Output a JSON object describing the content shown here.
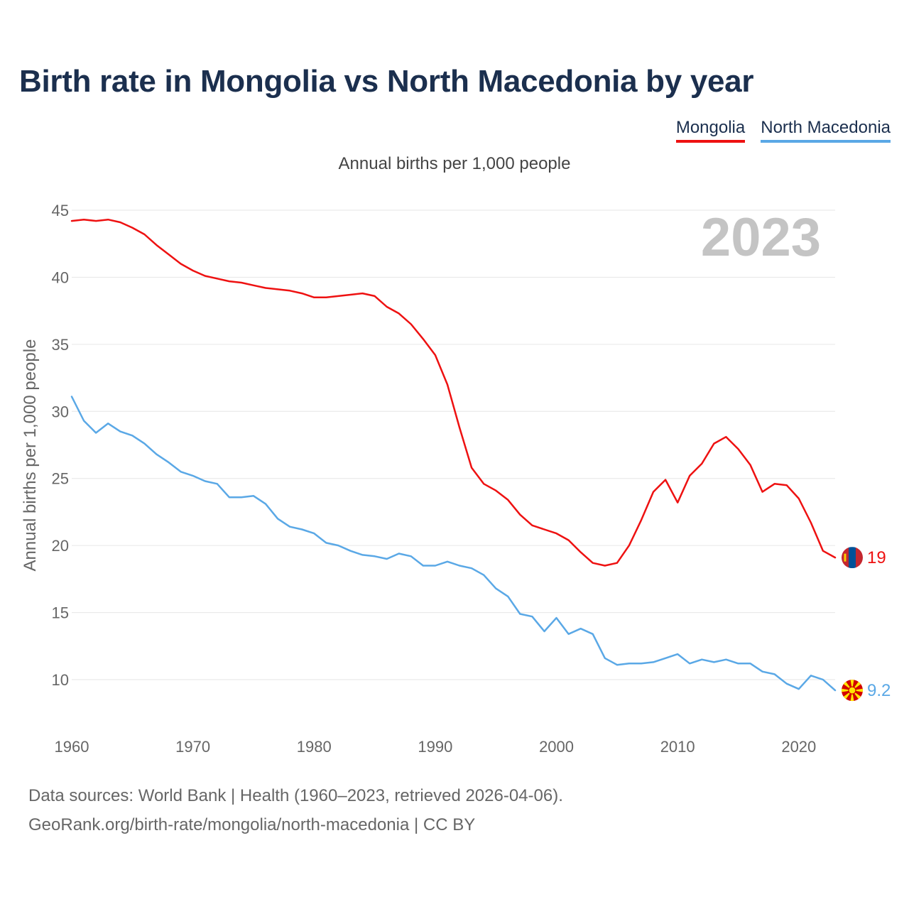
{
  "header": {
    "title": "Birth rate in Mongolia vs North Macedonia by year",
    "subtitle": "Annual births per 1,000 people"
  },
  "legend": {
    "mongolia": "Mongolia",
    "north_macedonia": "North Macedonia"
  },
  "footer": {
    "source_line": "Data sources: World Bank | Health (1960–2023, retrieved 2026-04-06).",
    "credit_line": "GeoRank.org/birth-rate/mongolia/north-macedonia | CC BY"
  },
  "colors": {
    "mongolia": "#ee1111",
    "north_macedonia": "#5aa8e6",
    "title": "#1b2f4e",
    "year_watermark": "#c4c4c4"
  },
  "chart_data": {
    "type": "line",
    "title": "Birth rate in Mongolia vs North Macedonia by year",
    "subtitle": "Annual births per 1,000 people",
    "xlabel": "",
    "ylabel": "Annual births per 1,000 people",
    "xlim": [
      1960,
      2023
    ],
    "ylim": [
      7,
      45
    ],
    "yticks": [
      10,
      15,
      20,
      25,
      30,
      35,
      40,
      45
    ],
    "xticks": [
      1960,
      1970,
      1980,
      1990,
      2000,
      2010,
      2020
    ],
    "year_label": "2023",
    "grid": true,
    "legend_position": "top-right",
    "x": [
      1960,
      1961,
      1962,
      1963,
      1964,
      1965,
      1966,
      1967,
      1968,
      1969,
      1970,
      1971,
      1972,
      1973,
      1974,
      1975,
      1976,
      1977,
      1978,
      1979,
      1980,
      1981,
      1982,
      1983,
      1984,
      1985,
      1986,
      1987,
      1988,
      1989,
      1990,
      1991,
      1992,
      1993,
      1994,
      1995,
      1996,
      1997,
      1998,
      1999,
      2000,
      2001,
      2002,
      2003,
      2004,
      2005,
      2006,
      2007,
      2008,
      2009,
      2010,
      2011,
      2012,
      2013,
      2014,
      2015,
      2016,
      2017,
      2018,
      2019,
      2020,
      2021,
      2022,
      2023
    ],
    "series": [
      {
        "name": "Mongolia",
        "color": "#ee1111",
        "end_label": "19",
        "flag": "mongolia-flag",
        "values": [
          44.2,
          44.3,
          44.2,
          44.3,
          44.1,
          43.7,
          43.2,
          42.4,
          41.7,
          41.0,
          40.5,
          40.1,
          39.9,
          39.7,
          39.6,
          39.4,
          39.2,
          39.1,
          39.0,
          38.8,
          38.5,
          38.5,
          38.6,
          38.7,
          38.8,
          38.6,
          37.8,
          37.3,
          36.5,
          35.4,
          34.2,
          32.0,
          28.8,
          25.8,
          24.6,
          24.1,
          23.4,
          22.3,
          21.5,
          21.2,
          20.9,
          20.4,
          19.5,
          18.7,
          18.5,
          18.7,
          20.0,
          21.9,
          24.0,
          24.9,
          23.2,
          25.2,
          26.1,
          27.6,
          28.1,
          27.2,
          26.0,
          24.0,
          24.6,
          24.5,
          23.5,
          21.7,
          19.6,
          19.1
        ]
      },
      {
        "name": "North Macedonia",
        "color": "#5aa8e6",
        "end_label": "9.2",
        "flag": "north-macedonia-flag",
        "values": [
          31.1,
          29.3,
          28.4,
          29.1,
          28.5,
          28.2,
          27.6,
          26.8,
          26.2,
          25.5,
          25.2,
          24.8,
          24.6,
          23.6,
          23.6,
          23.7,
          23.1,
          22.0,
          21.4,
          21.2,
          20.9,
          20.2,
          20.0,
          19.6,
          19.3,
          19.2,
          19.0,
          19.4,
          19.2,
          18.5,
          18.5,
          18.8,
          18.5,
          18.3,
          17.8,
          16.8,
          16.2,
          14.9,
          14.7,
          13.6,
          14.6,
          13.4,
          13.8,
          13.4,
          11.6,
          11.1,
          11.2,
          11.2,
          11.3,
          11.6,
          11.9,
          11.2,
          11.5,
          11.3,
          11.5,
          11.2,
          11.2,
          10.6,
          10.4,
          9.7,
          9.3,
          10.3,
          10.0,
          9.2
        ]
      }
    ]
  }
}
